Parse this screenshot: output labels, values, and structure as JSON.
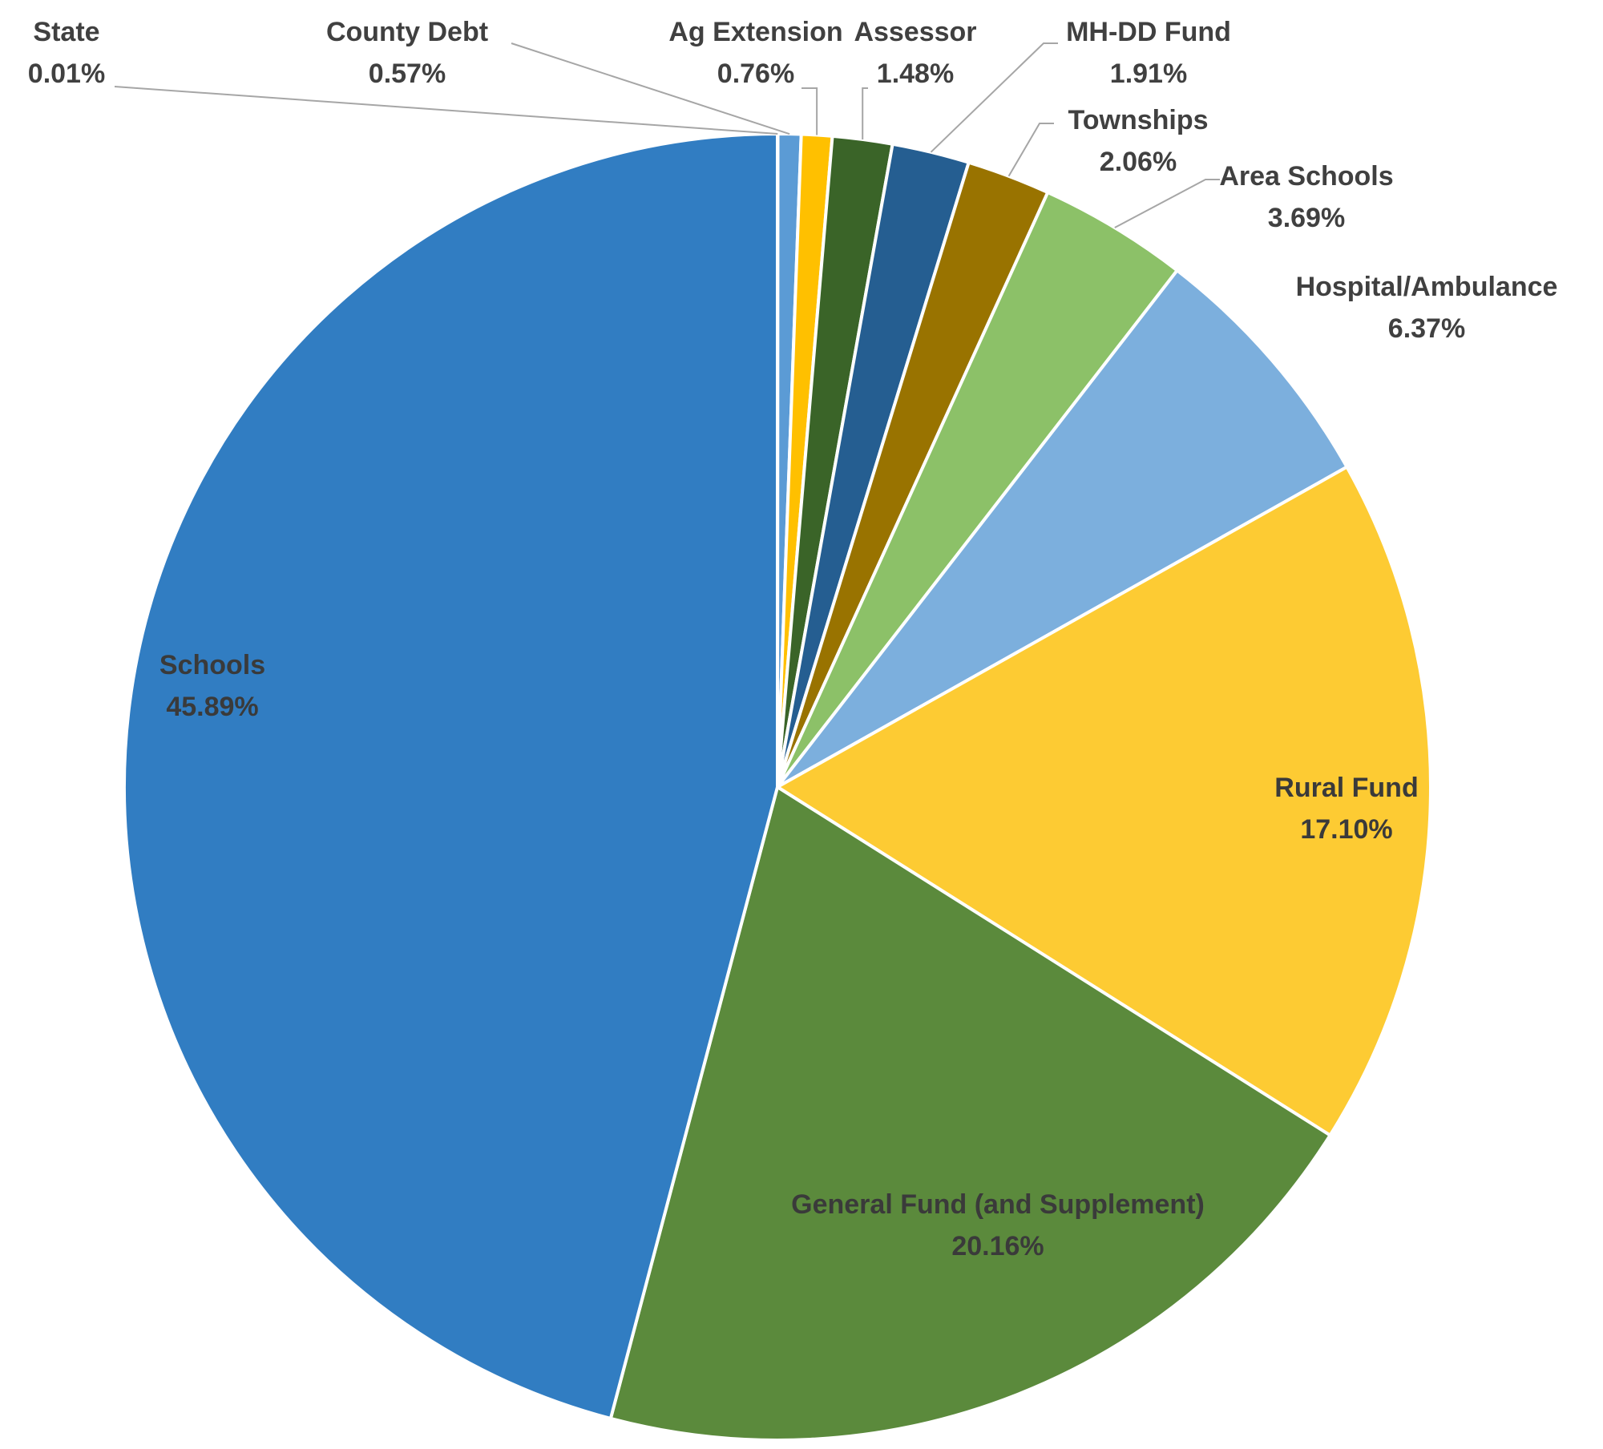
{
  "chart_data": {
    "type": "pie",
    "title": "",
    "slices": [
      {
        "name": "State",
        "label": "State",
        "value": 0.01,
        "value_label": "0.01%",
        "color": "#9dc3e6"
      },
      {
        "name": "County Debt",
        "label": "County Debt",
        "value": 0.57,
        "value_label": "0.57%",
        "color": "#5b9bd5"
      },
      {
        "name": "Ag Extension",
        "label": "Ag Extension",
        "value": 0.76,
        "value_label": "0.76%",
        "color": "#ffc000"
      },
      {
        "name": "Assessor",
        "label": "Assessor",
        "value": 1.48,
        "value_label": "1.48%",
        "color": "#3a6428"
      },
      {
        "name": "MH-DD Fund",
        "label": "MH-DD Fund",
        "value": 1.91,
        "value_label": "1.91%",
        "color": "#255e91"
      },
      {
        "name": "Townships",
        "label": "Townships",
        "value": 2.06,
        "value_label": "2.06%",
        "color": "#997300"
      },
      {
        "name": "Area Schools",
        "label": "Area Schools",
        "value": 3.69,
        "value_label": "3.69%",
        "color": "#8cc168"
      },
      {
        "name": "Hospital/Ambulance",
        "label": "Hospital/Ambulance",
        "value": 6.37,
        "value_label": "6.37%",
        "color": "#7cafdd"
      },
      {
        "name": "Rural Fund",
        "label": "Rural Fund",
        "value": 17.1,
        "value_label": "17.10%",
        "color": "#fdcb33"
      },
      {
        "name": "General Fund (and Supplement)",
        "label": "General Fund (and Supplement)",
        "value": 20.16,
        "value_label": "20.16%",
        "color": "#5b8a3c"
      },
      {
        "name": "Schools",
        "label": "Schools",
        "value": 45.89,
        "value_label": "45.89%",
        "color": "#317dc2"
      }
    ]
  }
}
